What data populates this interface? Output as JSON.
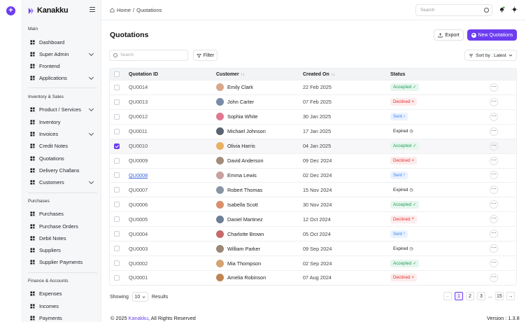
{
  "app": {
    "name": "Kanakku"
  },
  "breadcrumb": {
    "home": "Home",
    "sep": "/",
    "current": "Quotations"
  },
  "header": {
    "search_placeholder": "Search"
  },
  "sidebar": {
    "sections": [
      {
        "title": "Main",
        "items": [
          {
            "label": "Dashboard",
            "icon": "dashboard-icon",
            "chevron": false
          },
          {
            "label": "Super Admin",
            "icon": "user-shield-icon",
            "chevron": true
          },
          {
            "label": "Frontend",
            "icon": "globe-icon",
            "chevron": false
          },
          {
            "label": "Applications",
            "icon": "apps-icon",
            "chevron": true
          }
        ]
      },
      {
        "title": "Inventory & Sales",
        "items": [
          {
            "label": "Product / Services",
            "icon": "box-icon",
            "chevron": true
          },
          {
            "label": "Inventory",
            "icon": "inventory-icon",
            "chevron": false
          },
          {
            "label": "Invoices",
            "icon": "invoice-icon",
            "chevron": true
          },
          {
            "label": "Credit Notes",
            "icon": "credit-note-icon",
            "chevron": false
          },
          {
            "label": "Quotations",
            "icon": "quotation-icon",
            "chevron": false
          },
          {
            "label": "Delivery Challans",
            "icon": "truck-icon",
            "chevron": false
          },
          {
            "label": "Customers",
            "icon": "users-icon",
            "chevron": true
          }
        ]
      },
      {
        "title": "Purchases",
        "items": [
          {
            "label": "Purchases",
            "icon": "bag-icon",
            "chevron": false
          },
          {
            "label": "Purchase Orders",
            "icon": "order-icon",
            "chevron": false
          },
          {
            "label": "Debit Notes",
            "icon": "debit-note-icon",
            "chevron": false
          },
          {
            "label": "Suppliers",
            "icon": "supplier-icon",
            "chevron": false
          },
          {
            "label": "Supplier Payments",
            "icon": "payment-icon",
            "chevron": false
          }
        ]
      },
      {
        "title": "Finance & Accounts",
        "items": [
          {
            "label": "Expenses",
            "icon": "expense-icon",
            "chevron": false
          },
          {
            "label": "Incomes",
            "icon": "income-icon",
            "chevron": false
          },
          {
            "label": "Payments",
            "icon": "wallet-icon",
            "chevron": false
          }
        ]
      }
    ]
  },
  "page": {
    "title": "Quotations",
    "export_label": "Export",
    "new_label": "New Quotations",
    "search_placeholder": "Search",
    "filter_label": "Filter",
    "sort_label": "Sort by : Latest"
  },
  "table": {
    "columns": {
      "id": "Quotation ID",
      "customer": "Customer",
      "created": "Created On",
      "status": "Status"
    },
    "rows": [
      {
        "id": "QU0014",
        "customer": "Emily Clark",
        "date": "22 Feb 2025",
        "status": "Accepted",
        "checked": false,
        "link": false
      },
      {
        "id": "QU0013",
        "customer": "John Carter",
        "date": "07 Feb 2025",
        "status": "Declined",
        "checked": false,
        "link": false
      },
      {
        "id": "QU0012",
        "customer": "Sophia White",
        "date": "30 Jan 2025",
        "status": "Sent",
        "checked": false,
        "link": false
      },
      {
        "id": "QU0011",
        "customer": "Michael Johnson",
        "date": "17 Jan 2025",
        "status": "Expired",
        "checked": false,
        "link": false
      },
      {
        "id": "QU0010",
        "customer": "Olivia Harris",
        "date": "04 Jan 2025",
        "status": "Accepted",
        "checked": true,
        "link": false
      },
      {
        "id": "QU0009",
        "customer": "David Anderson",
        "date": "09 Dec 2024",
        "status": "Declined",
        "checked": false,
        "link": false
      },
      {
        "id": "QU0008",
        "customer": "Emma Lewis",
        "date": "02 Dec 2024",
        "status": "Sent",
        "checked": false,
        "link": true
      },
      {
        "id": "QU0007",
        "customer": "Robert Thomas",
        "date": "15 Nov 2024",
        "status": "Expired",
        "checked": false,
        "link": false
      },
      {
        "id": "QU0006",
        "customer": "Isabella Scott",
        "date": "30 Nov 2024",
        "status": "Accepted",
        "checked": false,
        "link": false
      },
      {
        "id": "QU0005",
        "customer": "Daniel Martinez",
        "date": "12 Oct 2024",
        "status": "Declined",
        "checked": false,
        "link": false
      },
      {
        "id": "QU0004",
        "customer": "Charlotte Brown",
        "date": "05 Oct 2024",
        "status": "Sent",
        "checked": false,
        "link": false
      },
      {
        "id": "QU0003",
        "customer": "William Parker",
        "date": "09 Sep 2024",
        "status": "Expired",
        "checked": false,
        "link": false
      },
      {
        "id": "QU0002",
        "customer": "Mia Thompson",
        "date": "02 Sep 2024",
        "status": "Accepted",
        "checked": false,
        "link": false
      },
      {
        "id": "QU0001",
        "customer": "Amelia Robinson",
        "date": "07 Aug 2024",
        "status": "Declined",
        "checked": false,
        "link": false
      }
    ]
  },
  "status_styles": {
    "Accepted": {
      "fg": "#1f9d55",
      "bg": "#e6f7ee"
    },
    "Declined": {
      "fg": "#e03131",
      "bg": "#fdecec"
    },
    "Sent": {
      "fg": "#3b82f6",
      "bg": "#eaf2ff"
    },
    "Expired": {
      "fg": "#222222",
      "bg": "#ffffff"
    }
  },
  "avatar_colors": [
    "#d9a88a",
    "#7a8ca8",
    "#e0788f",
    "#5a6470",
    "#e8b062",
    "#a38c7b",
    "#c9a0a0",
    "#8895a3",
    "#d98e6c",
    "#6d7f96",
    "#c46a6a",
    "#9a8777",
    "#d4a373",
    "#c08552"
  ],
  "footer": {
    "showing": "Showing",
    "per_page": "10",
    "results": "Results",
    "pages": [
      "1",
      "2",
      "3",
      "...",
      "15"
    ],
    "active_page": "1",
    "copyright_prefix": "© 2025 ",
    "copyright_brand": "Kanakku",
    "copyright_suffix": ", All Rights Reserved",
    "version": "Version : 1.3.8"
  },
  "colors": {
    "accent": "#6c3cf0"
  }
}
